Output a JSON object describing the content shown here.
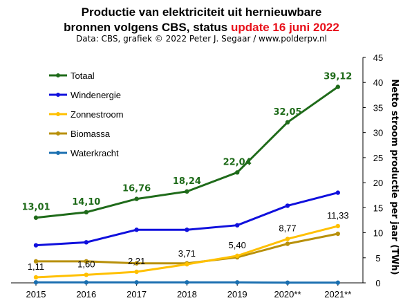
{
  "header": {
    "title_line1": "Productie van elektriciteit  uit hernieuwbare",
    "title_line2_main": "bronnen volgens CBS, status ",
    "title_line2_highlight": "update 16 juni 2022",
    "subtitle": "Data: CBS, grafiek © 2022 Peter J. Segaar / www.polderpv.nl"
  },
  "chart_data": {
    "type": "line",
    "categories": [
      "2015",
      "2016",
      "2017",
      "2018",
      "2019",
      "2020**",
      "2021**"
    ],
    "ylabel": "Netto stroom productie per jaar (TWh)",
    "ylim": [
      0,
      45
    ],
    "yticks": [
      0,
      5,
      10,
      15,
      20,
      25,
      30,
      35,
      40,
      45
    ],
    "y_axis_side": "right",
    "grid": false,
    "legend_position": "top-left",
    "series": [
      {
        "name": "Totaal",
        "color": "#1f6b1a",
        "values": [
          13.01,
          14.1,
          16.76,
          18.24,
          22.04,
          32.05,
          39.12
        ],
        "labels": [
          "13,01",
          "14,10",
          "16,76",
          "18,24",
          "22,04",
          "32,05",
          "39,12"
        ],
        "label_style": "green"
      },
      {
        "name": "Windenergie",
        "color": "#1010dd",
        "values": [
          7.5,
          8.1,
          10.6,
          10.6,
          11.5,
          15.4,
          18.0
        ]
      },
      {
        "name": "Zonnestroom",
        "color": "#ffc000",
        "values": [
          1.11,
          1.6,
          2.21,
          3.71,
          5.4,
          8.77,
          11.33
        ],
        "labels": [
          "1,11",
          "1,60",
          "2,21",
          "3,71",
          "5,40",
          "8,77",
          "11,33"
        ],
        "label_style": "black"
      },
      {
        "name": "Biomassa",
        "color": "#b8900a",
        "values": [
          4.3,
          4.3,
          3.9,
          3.9,
          5.1,
          7.8,
          9.8
        ]
      },
      {
        "name": "Waterkracht",
        "color": "#1a6fb0",
        "values": [
          0.1,
          0.1,
          0.1,
          0.1,
          0.1,
          0.05,
          0.05
        ]
      }
    ]
  }
}
